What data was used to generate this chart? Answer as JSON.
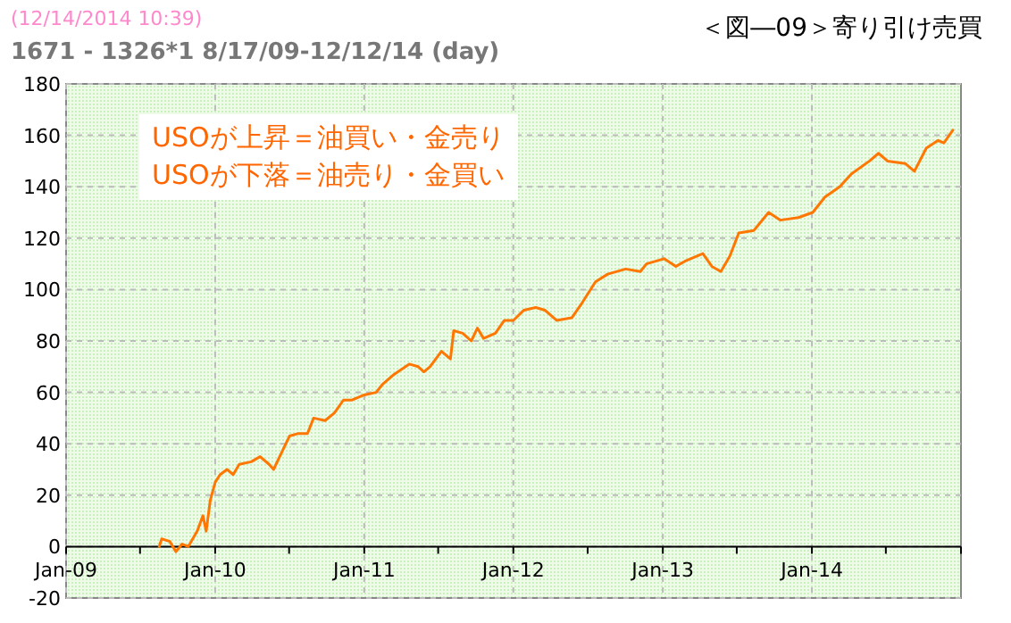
{
  "chart_data": {
    "type": "line",
    "title": "＜図―09＞寄り引け売買",
    "subtitle": "1671 - 1326*1  8/17/09-12/12/14 (day)",
    "annotations": [
      "(12/14/2014 10:39)",
      "USOが上昇＝油買い・金売り",
      "USOが下落＝油売り・金買い"
    ],
    "xlim": [
      "2009-01-01",
      "2015-01-01"
    ],
    "xticks": [
      {
        "value": "2009-01-01",
        "label": "Jan-09"
      },
      {
        "value": "2009-07-01",
        "label": null
      },
      {
        "value": "2010-01-01",
        "label": "Jan-10"
      },
      {
        "value": "2010-07-01",
        "label": null
      },
      {
        "value": "2011-01-01",
        "label": "Jan-11"
      },
      {
        "value": "2011-07-01",
        "label": null
      },
      {
        "value": "2012-01-01",
        "label": "Jan-12"
      },
      {
        "value": "2012-07-01",
        "label": null
      },
      {
        "value": "2013-01-01",
        "label": "Jan-13"
      },
      {
        "value": "2013-07-01",
        "label": null
      },
      {
        "value": "2014-01-01",
        "label": "Jan-14"
      },
      {
        "value": "2014-07-01",
        "label": null
      },
      {
        "value": "2015-01-01",
        "label": null
      }
    ],
    "ylim": [
      -20,
      180
    ],
    "yticks": [
      -20,
      0,
      20,
      40,
      60,
      80,
      100,
      120,
      140,
      160,
      180
    ],
    "grid": true,
    "marker": "none",
    "line_style": "solid",
    "series": [
      {
        "color": "#ff7700",
        "x": [
          "2009-08-17",
          "2009-08-23",
          "2009-09-12",
          "2009-09-27",
          "2009-10-12",
          "2009-10-27",
          "2009-11-18",
          "2009-12-02",
          "2009-12-10",
          "2009-12-20",
          "2010-01-01",
          "2010-01-13",
          "2010-01-30",
          "2010-02-14",
          "2010-03-01",
          "2010-03-30",
          "2010-04-21",
          "2010-05-13",
          "2010-05-24",
          "2010-06-11",
          "2010-07-02",
          "2010-07-24",
          "2010-08-15",
          "2010-08-30",
          "2010-09-27",
          "2010-10-20",
          "2010-11-11",
          "2010-12-02",
          "2011-01-01",
          "2011-01-30",
          "2011-02-14",
          "2011-03-15",
          "2011-04-21",
          "2011-05-13",
          "2011-05-27",
          "2011-06-11",
          "2011-07-09",
          "2011-07-31",
          "2011-08-08",
          "2011-08-30",
          "2011-09-20",
          "2011-10-05",
          "2011-10-20",
          "2011-11-18",
          "2011-12-10",
          "2012-01-01",
          "2012-01-27",
          "2012-02-25",
          "2012-03-18",
          "2012-04-16",
          "2012-05-23",
          "2012-06-14",
          "2012-07-20",
          "2012-08-19",
          "2012-10-02",
          "2012-11-07",
          "2012-11-22",
          "2013-01-04",
          "2013-02-02",
          "2013-02-24",
          "2013-04-09",
          "2013-05-01",
          "2013-05-23",
          "2013-06-14",
          "2013-07-06",
          "2013-08-12",
          "2013-09-17",
          "2013-10-16",
          "2013-11-29",
          "2014-01-03",
          "2014-02-02",
          "2014-03-10",
          "2014-04-08",
          "2014-05-22",
          "2014-06-13",
          "2014-07-05",
          "2014-08-18",
          "2014-09-09",
          "2014-10-08",
          "2014-11-06",
          "2014-11-20",
          "2014-12-12"
        ],
        "values": [
          0,
          3,
          2,
          -2,
          1,
          0,
          6,
          12,
          6,
          18,
          25,
          28,
          30,
          28,
          32,
          33,
          35,
          32,
          30,
          36,
          43,
          44,
          44,
          50,
          49,
          52,
          57,
          57,
          59,
          60,
          63,
          67,
          71,
          70,
          68,
          70,
          76,
          73,
          84,
          83,
          80,
          85,
          81,
          83,
          88,
          88,
          92,
          93,
          92,
          88,
          89,
          94,
          103,
          106,
          108,
          107,
          110,
          112,
          109,
          111,
          114,
          109,
          107,
          113,
          122,
          123,
          130,
          127,
          128,
          130,
          136,
          140,
          145,
          150,
          153,
          150,
          149,
          146,
          155,
          158,
          157,
          162
        ]
      }
    ]
  }
}
